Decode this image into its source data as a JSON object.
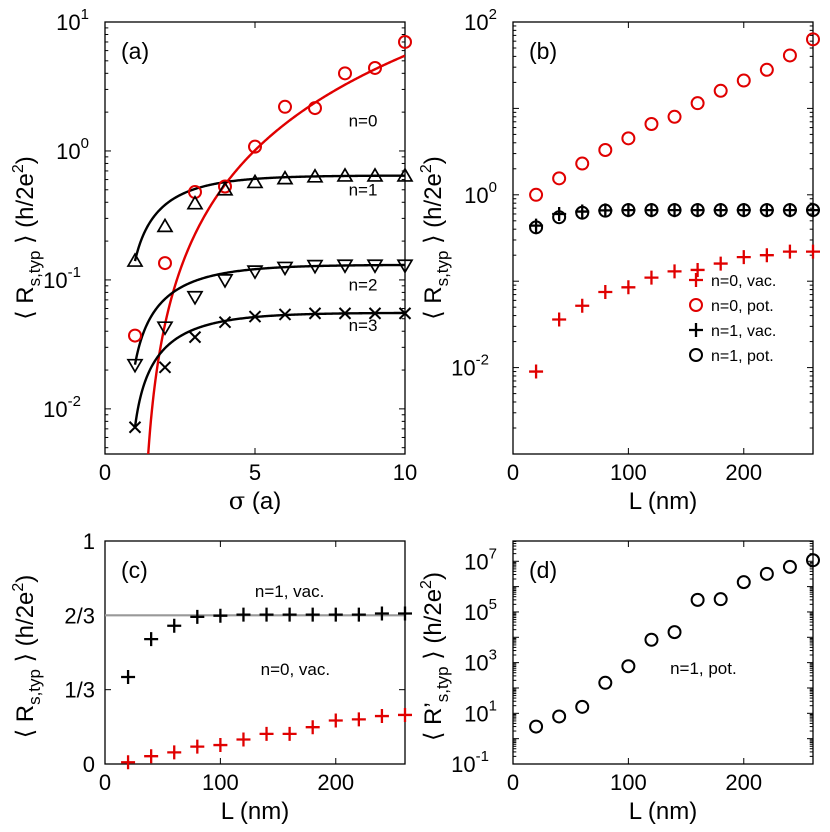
{
  "chart_data": [
    {
      "panel": "a",
      "type": "scatter",
      "scale": "log-y",
      "label": "(a)",
      "xlabel_symbol": "σ",
      "xlabel_unit": " (a)",
      "ylabel_prefix": "⟨ R",
      "ylabel_sub": "s,typ",
      "ylabel_suffix": " ⟩ (h/2e",
      "ylabel_sup": "2",
      "ylabel_close": ")",
      "xlim": [
        0,
        10
      ],
      "ylim_log10": [
        -2.35,
        1
      ],
      "xticks": [
        0,
        5,
        10
      ],
      "yticks_exp": [
        -2,
        -1,
        0,
        1
      ],
      "series": [
        {
          "name": "n=0",
          "color": "#e00000",
          "marker": "circle",
          "x": [
            1,
            2,
            3,
            4,
            5,
            6,
            7,
            8,
            9,
            10
          ],
          "y": [
            0.037,
            0.135,
            0.48,
            0.53,
            1.08,
            2.2,
            2.15,
            4.0,
            4.4,
            7.0
          ],
          "fit": {
            "type": "power",
            "x0": 1.18,
            "coef": 0.0675,
            "exp": 2.02
          }
        },
        {
          "name": "n=1",
          "color": "#000000",
          "marker": "triangle-up",
          "x": [
            1,
            2,
            3,
            4,
            5,
            6,
            7,
            8,
            9,
            10
          ],
          "y": [
            0.14,
            0.26,
            0.39,
            0.5,
            0.57,
            0.61,
            0.63,
            0.64,
            0.64,
            0.64
          ],
          "fit": {
            "type": "saturation",
            "A": 0.645,
            "r": 0.65,
            "y1": 0.14,
            "x0": 1
          }
        },
        {
          "name": "n=2",
          "color": "#000000",
          "marker": "triangle-down",
          "x": [
            1,
            2,
            3,
            4,
            5,
            6,
            7,
            8,
            9,
            10
          ],
          "y": [
            0.022,
            0.043,
            0.074,
            0.1,
            0.117,
            0.125,
            0.129,
            0.13,
            0.13,
            0.13
          ],
          "fit": {
            "type": "saturation",
            "A": 0.131,
            "r": 0.6,
            "y1": 0.022,
            "x0": 1
          }
        },
        {
          "name": "n=3",
          "color": "#000000",
          "marker": "cross",
          "x": [
            1,
            2,
            3,
            4,
            5,
            6,
            7,
            8,
            9,
            10
          ],
          "y": [
            0.0072,
            0.021,
            0.036,
            0.047,
            0.052,
            0.054,
            0.055,
            0.055,
            0.055,
            0.055
          ],
          "fit": {
            "type": "saturation",
            "A": 0.0556,
            "r": 0.62,
            "y1": 0.0072,
            "x0": 1
          }
        }
      ],
      "annotations": [
        {
          "text": "n=0",
          "x": 8.6,
          "y": 1.55
        },
        {
          "text": "n=1",
          "x": 8.6,
          "y": 0.45
        },
        {
          "text": "n=2",
          "x": 8.6,
          "y": 0.083
        },
        {
          "text": "n=3",
          "x": 8.6,
          "y": 0.04
        }
      ]
    },
    {
      "panel": "b",
      "type": "scatter",
      "scale": "log-y",
      "label": "(b)",
      "xlabel": "L (nm)",
      "ylabel_prefix": "⟨ R",
      "ylabel_sub": "s,typ",
      "ylabel_suffix": " ⟩ (h/2e",
      "ylabel_sup": "2",
      "ylabel_close": ")",
      "xlim": [
        0,
        260
      ],
      "ylim_log10": [
        -3,
        2
      ],
      "xticks": [
        0,
        100,
        200
      ],
      "yticks_exp": [
        -2,
        0,
        2
      ],
      "series": [
        {
          "name": "n=0, vac.",
          "color": "#e00000",
          "marker": "plus",
          "x": [
            20,
            40,
            60,
            80,
            100,
            120,
            140,
            160,
            180,
            200,
            220,
            240,
            260
          ],
          "y": [
            0.009,
            0.036,
            0.052,
            0.075,
            0.085,
            0.11,
            0.13,
            0.135,
            0.16,
            0.19,
            0.2,
            0.22,
            0.22
          ]
        },
        {
          "name": "n=0, pot.",
          "color": "#e00000",
          "marker": "circle",
          "x": [
            20,
            40,
            60,
            80,
            100,
            120,
            140,
            160,
            180,
            200,
            220,
            240,
            260
          ],
          "y": [
            1.0,
            1.55,
            2.3,
            3.3,
            4.5,
            6.6,
            8.0,
            11.5,
            16,
            21,
            28,
            41,
            63
          ]
        },
        {
          "name": "n=1, vac.",
          "color": "#000000",
          "marker": "plus",
          "x": [
            20,
            40,
            60,
            80,
            100,
            120,
            140,
            160,
            180,
            200,
            220,
            240,
            260
          ],
          "y": [
            0.44,
            0.6,
            0.64,
            0.66,
            0.665,
            0.665,
            0.665,
            0.665,
            0.665,
            0.665,
            0.665,
            0.665,
            0.665
          ]
        },
        {
          "name": "n=1, pot.",
          "color": "#000000",
          "marker": "circle",
          "x": [
            20,
            40,
            60,
            80,
            100,
            120,
            140,
            160,
            180,
            200,
            220,
            240,
            260
          ],
          "y": [
            0.42,
            0.55,
            0.62,
            0.655,
            0.665,
            0.665,
            0.665,
            0.665,
            0.665,
            0.665,
            0.665,
            0.665,
            0.665
          ]
        }
      ],
      "legend_position": "lower-right"
    },
    {
      "panel": "c",
      "type": "scatter",
      "scale": "linear",
      "label": "(c)",
      "xlabel": "L (nm)",
      "ylabel_prefix": "⟨ R",
      "ylabel_sub": "s,typ",
      "ylabel_suffix": " ⟩ (h/2e",
      "ylabel_sup": "2",
      "ylabel_close": ")",
      "xlim": [
        0,
        260
      ],
      "ylim": [
        0,
        1
      ],
      "xticks": [
        0,
        100,
        200
      ],
      "yticks": [
        0,
        0.3333,
        0.6667,
        1
      ],
      "ytick_labels": [
        "0",
        "1/3",
        "2/3",
        "1"
      ],
      "reference_line": {
        "y": 0.6667,
        "color": "#999999"
      },
      "series": [
        {
          "name": "n=1, vac.",
          "color": "#000000",
          "marker": "plus",
          "x": [
            20,
            40,
            60,
            80,
            100,
            120,
            140,
            160,
            180,
            200,
            220,
            240,
            260
          ],
          "y": [
            0.39,
            0.56,
            0.62,
            0.66,
            0.665,
            0.67,
            0.67,
            0.67,
            0.67,
            0.67,
            0.67,
            0.675,
            0.675
          ]
        },
        {
          "name": "n=0, vac.",
          "color": "#e00000",
          "marker": "plus",
          "x": [
            20,
            40,
            60,
            80,
            100,
            120,
            140,
            160,
            180,
            200,
            220,
            240,
            260
          ],
          "y": [
            0.008,
            0.035,
            0.052,
            0.078,
            0.085,
            0.11,
            0.135,
            0.135,
            0.165,
            0.195,
            0.2,
            0.215,
            0.22
          ]
        }
      ],
      "annotations": [
        {
          "text": "n=1, vac.",
          "x": 160,
          "y": 0.75
        },
        {
          "text": "n=0, vac.",
          "x": 165,
          "y": 0.4
        }
      ]
    },
    {
      "panel": "d",
      "type": "scatter",
      "scale": "log-y",
      "label": "(d)",
      "xlabel": "L (nm)",
      "ylabel_prefix": "⟨ R’",
      "ylabel_sub": "s,typ",
      "ylabel_suffix": " ⟩ (h/2e",
      "ylabel_sup": "2",
      "ylabel_close": ")",
      "xlim": [
        0,
        260
      ],
      "ylim_log10": [
        -1,
        7.8
      ],
      "xticks": [
        0,
        100,
        200
      ],
      "yticks_exp": [
        -1,
        1,
        3,
        5,
        7
      ],
      "series": [
        {
          "name": "n=1, pot.",
          "color": "#000000",
          "marker": "circle",
          "x": [
            20,
            40,
            60,
            80,
            100,
            120,
            140,
            160,
            180,
            200,
            220,
            240,
            260
          ],
          "y": [
            3.0,
            7.5,
            18,
            160,
            720,
            8000,
            16000,
            300000,
            320000,
            1500000,
            3200000,
            6000000,
            11000000
          ]
        }
      ],
      "annotations": [
        {
          "text": "n=1, pot.",
          "x": 165,
          "y": 350
        }
      ]
    }
  ]
}
